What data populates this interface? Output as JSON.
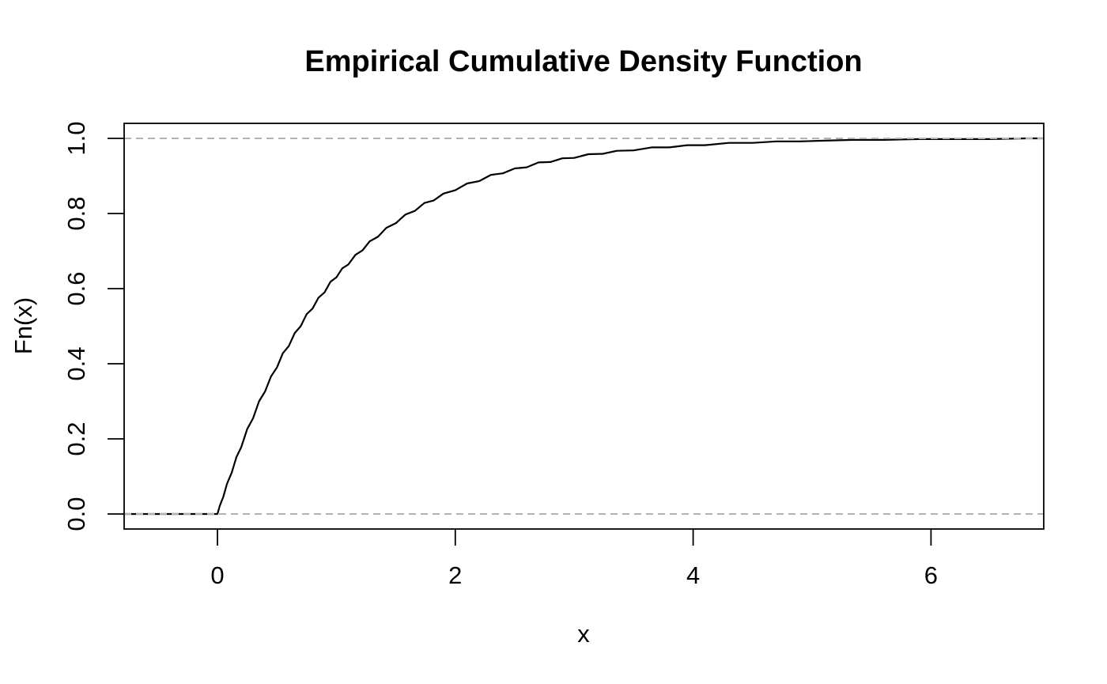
{
  "figure": {
    "background": "#ffffff",
    "foreground": "#000000"
  },
  "chart_data": {
    "type": "line",
    "subtype": "ecdf",
    "title": "Empirical Cumulative Density Function",
    "xlabel": "x",
    "ylabel": "Fn(x)",
    "x_tick_labels": [
      "0",
      "2",
      "4",
      "6"
    ],
    "x_tick_values": [
      0,
      2,
      4,
      6
    ],
    "y_tick_labels": [
      "0.0",
      "0.2",
      "0.4",
      "0.6",
      "0.8",
      "1.0"
    ],
    "y_tick_values": [
      0.0,
      0.2,
      0.4,
      0.6,
      0.8,
      1.0
    ],
    "xlim": [
      -0.79,
      6.95
    ],
    "ylim": [
      -0.04,
      1.04
    ],
    "grid": false,
    "legend": null,
    "box": true,
    "reference_lines": {
      "y_values": [
        0,
        1
      ],
      "color": "#b2b2b2",
      "style": "dashed",
      "drawn_on_top": true
    },
    "series": [
      {
        "name": "Fn(x)",
        "color": "#000000",
        "line_width": 2.2,
        "x": [
          -0.79,
          0,
          0.02,
          0.05,
          0.08,
          0.12,
          0.16,
          0.2,
          0.25,
          0.3,
          0.35,
          0.4,
          0.45,
          0.5,
          0.55,
          0.6,
          0.65,
          0.7,
          0.75,
          0.8,
          0.85,
          0.9,
          0.95,
          1.0,
          1.05,
          1.1,
          1.16,
          1.22,
          1.28,
          1.35,
          1.42,
          1.5,
          1.58,
          1.66,
          1.74,
          1.82,
          1.9,
          2.0,
          2.1,
          2.2,
          2.3,
          2.4,
          2.5,
          2.6,
          2.7,
          2.8,
          2.9,
          3.0,
          3.12,
          3.24,
          3.36,
          3.5,
          3.65,
          3.8,
          3.95,
          4.1,
          4.3,
          4.5,
          4.7,
          4.9,
          5.1,
          5.35,
          5.6,
          5.9,
          6.2,
          6.5,
          6.8,
          6.95
        ],
        "y": [
          0,
          0,
          0.022,
          0.046,
          0.08,
          0.11,
          0.152,
          0.178,
          0.226,
          0.255,
          0.3,
          0.326,
          0.366,
          0.39,
          0.428,
          0.447,
          0.482,
          0.5,
          0.532,
          0.547,
          0.576,
          0.59,
          0.618,
          0.63,
          0.654,
          0.664,
          0.69,
          0.702,
          0.726,
          0.738,
          0.762,
          0.774,
          0.797,
          0.807,
          0.828,
          0.835,
          0.853,
          0.862,
          0.88,
          0.886,
          0.903,
          0.907,
          0.92,
          0.923,
          0.936,
          0.937,
          0.947,
          0.948,
          0.958,
          0.959,
          0.967,
          0.968,
          0.976,
          0.976,
          0.982,
          0.982,
          0.988,
          0.988,
          0.992,
          0.992,
          0.994,
          0.996,
          0.996,
          0.998,
          0.998,
          0.998,
          1.0,
          1.0
        ]
      }
    ]
  }
}
